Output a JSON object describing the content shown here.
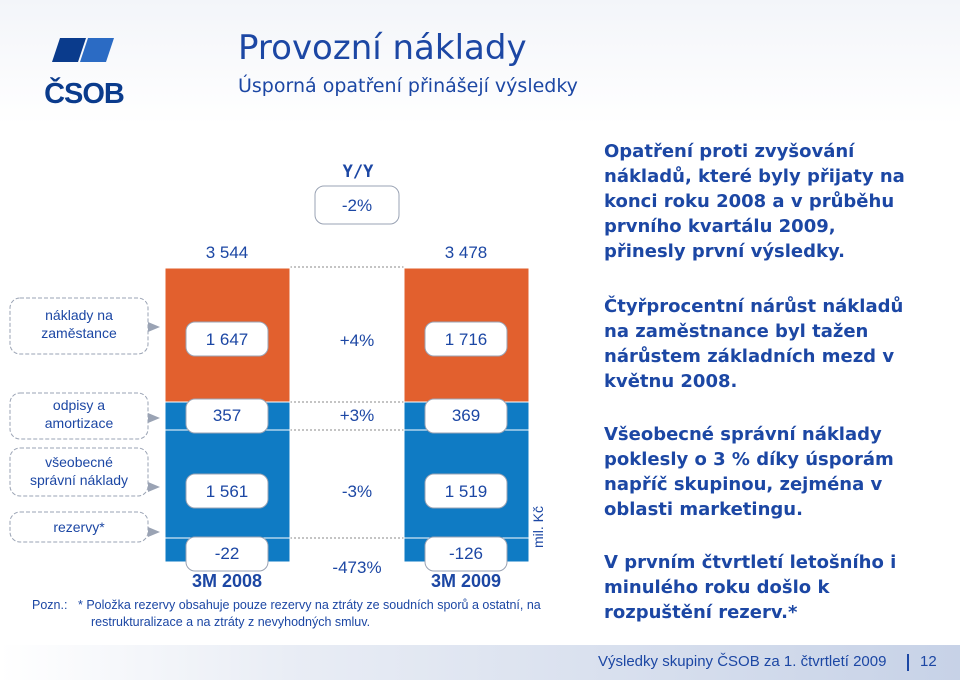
{
  "header": {
    "logo_text": "ČSOB",
    "title": "Provozní náklady",
    "subtitle": "Úsporná opatření přinášejí výsledky"
  },
  "chart_data": {
    "type": "bar",
    "stacked": true,
    "categories": [
      "3M 2008",
      "3M 2009"
    ],
    "totals": [
      "3 544",
      "3 478"
    ],
    "unit": "mil. Kč",
    "yoy_header": "Y/Y",
    "yoy_total": "-2%",
    "series": [
      {
        "name": "náklady na zaměstance",
        "values": [
          1647,
          1716
        ],
        "labels": [
          "1 647",
          "1 716"
        ],
        "change": "+4%"
      },
      {
        "name": "odpisy a amortizace",
        "values": [
          357,
          369
        ],
        "labels": [
          "357",
          "369"
        ],
        "change": "+3%"
      },
      {
        "name": "všeobecné správní náklady",
        "values": [
          1561,
          1519
        ],
        "labels": [
          "1 561",
          "1 519"
        ],
        "change": "-3%"
      },
      {
        "name": "rezervy*",
        "values": [
          -22,
          -126
        ],
        "labels": [
          "-22",
          "-126"
        ],
        "change": "-473%"
      }
    ],
    "colors": {
      "personnel": "#e2602e",
      "other": "#0f7bc4",
      "label_box": "#ffffff",
      "label_box_border": "#9aa3b4"
    }
  },
  "legend_labels": {
    "personnel": "náklady na zaměstance",
    "depreciation": "odpisy a amortizace",
    "general": "všeobecné správní náklady",
    "provisions": "rezervy*"
  },
  "note": {
    "prefix": "Pozn.:",
    "line1": "* Položka rezervy obsahuje pouze rezervy na ztráty ze soudních sporů a ostatní, na",
    "line2": "restrukturalizace a na ztráty z nevyhodných smluv."
  },
  "commentary": {
    "p1": [
      "Opatření proti zvyšování",
      "nákladů, které byly přijaty na",
      "konci roku 2008 a v průběhu",
      "prvního kvartálu 2009,",
      "přinesly první výsledky."
    ],
    "p2": [
      "Čtyřprocentní nárůst nákladů",
      "na zaměstnance byl tažen",
      "nárůstem základních mezd v",
      "květnu 2008."
    ],
    "p3": [
      "Všeobecné správní náklady",
      "poklesly o 3 % díky úsporám",
      "napříč skupinou, zejména v",
      "oblasti marketingu."
    ],
    "p4": [
      "V prvním čtvrtletí letošního i",
      "minulého roku došlo k",
      "rozpuštění rezerv.*"
    ]
  },
  "footer": {
    "text": "Výsledky skupiny ČSOB za 1. čtvrtletí 2009",
    "page": "12"
  }
}
